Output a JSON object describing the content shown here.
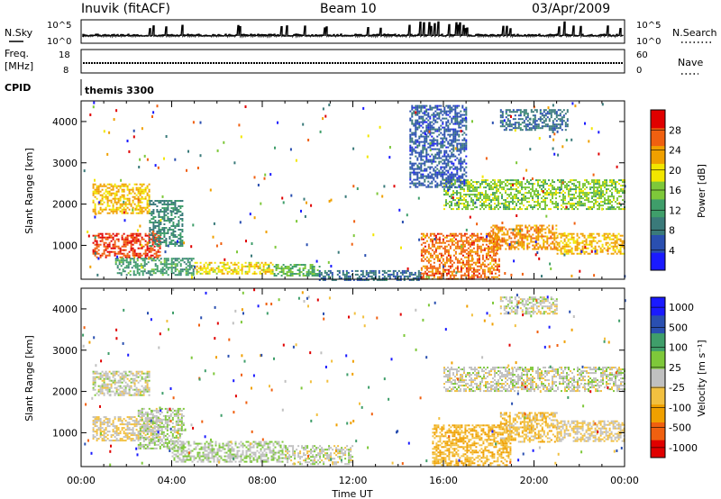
{
  "header": {
    "title": "Inuvik (fitACF)",
    "beam": "Beam 10",
    "date": "03/Apr/2009"
  },
  "strips": {
    "nsky_label": "N.Sky",
    "nsearch_label": "N.Search",
    "nsky_ticks": [
      "10^5",
      "10^0"
    ],
    "nsearch_ticks": [
      "10^5",
      "10^0"
    ],
    "freq_label": "Freq.",
    "freq_unit": "[MHz]",
    "freq_ticks": [
      "18",
      "8"
    ],
    "nave_label": "Nave",
    "nave_ticks": [
      "60",
      "0"
    ],
    "cpid_label": "CPID",
    "cpid_value": "themis 3300"
  },
  "colors": {
    "power_scale": [
      "#1a1aff",
      "#2a4fb0",
      "#3a7a7a",
      "#3f9e6a",
      "#7ec83a",
      "#f2e600",
      "#f0a000",
      "#f06010",
      "#e00000"
    ],
    "velocity_scale": [
      "#e00000",
      "#f06010",
      "#f0a000",
      "#f2c040",
      "#c0c0c0",
      "#7ec83a",
      "#3f9e6a",
      "#2a4fb0",
      "#1a1aff"
    ]
  },
  "chart_data": [
    {
      "type": "heatmap",
      "name": "power",
      "ylabel": "Slant Range [km]",
      "y_ticks": [
        "4000",
        "3000",
        "2000",
        "1000"
      ],
      "ylim": [
        180,
        4500
      ],
      "xlim": [
        0,
        24
      ],
      "colorbar_label": "Power [dB]",
      "colorbar_ticks": [
        "28",
        "24",
        "20",
        "16",
        "12",
        "8",
        "4"
      ],
      "colorbar_range": [
        0,
        32
      ],
      "regions": [
        {
          "t": [
            0.5,
            3.5
          ],
          "r": [
            700,
            1300
          ],
          "level": 28
        },
        {
          "t": [
            0.5,
            3.0
          ],
          "r": [
            1800,
            2500
          ],
          "level": 22
        },
        {
          "t": [
            3.0,
            4.5
          ],
          "r": [
            1000,
            2100
          ],
          "level": 10
        },
        {
          "t": [
            1.5,
            5.0
          ],
          "r": [
            300,
            700
          ],
          "level": 12
        },
        {
          "t": [
            5.0,
            8.5
          ],
          "r": [
            300,
            600
          ],
          "level": 20
        },
        {
          "t": [
            8.5,
            10.5
          ],
          "r": [
            250,
            550
          ],
          "level": 14
        },
        {
          "t": [
            10.5,
            15.0
          ],
          "r": [
            180,
            400
          ],
          "level": 8
        },
        {
          "t": [
            15.0,
            18.5
          ],
          "r": [
            200,
            1300
          ],
          "level": 26
        },
        {
          "t": [
            18.0,
            21.0
          ],
          "r": [
            900,
            1500
          ],
          "level": 24
        },
        {
          "t": [
            21.0,
            24.0
          ],
          "r": [
            800,
            1300
          ],
          "level": 22
        },
        {
          "t": [
            16.0,
            24.0
          ],
          "r": [
            1900,
            2600
          ],
          "level": 16
        },
        {
          "t": [
            14.5,
            17.0
          ],
          "r": [
            2400,
            4400
          ],
          "level": 6
        },
        {
          "t": [
            18.5,
            21.5
          ],
          "r": [
            3800,
            4300
          ],
          "level": 8
        }
      ]
    },
    {
      "type": "heatmap",
      "name": "velocity",
      "ylabel": "Slant Range [km]",
      "y_ticks": [
        "4000",
        "3000",
        "2000",
        "1000"
      ],
      "ylim": [
        180,
        4500
      ],
      "xlim": [
        0,
        24
      ],
      "xlabel": "Time UT",
      "x_ticks": [
        "00:00",
        "04:00",
        "08:00",
        "12:00",
        "16:00",
        "20:00",
        "00:00"
      ],
      "colorbar_label": "Velocity [m s⁻¹]",
      "colorbar_ticks": [
        "1000",
        "500",
        "100",
        "25",
        "-25",
        "-100",
        "-500",
        "-1000"
      ],
      "colorbar_range": [
        -1250,
        1250
      ],
      "regions": [
        {
          "t": [
            0.5,
            3.5
          ],
          "r": [
            800,
            1400
          ],
          "level": -120
        },
        {
          "t": [
            0.5,
            3.0
          ],
          "r": [
            1900,
            2500
          ],
          "level": 0
        },
        {
          "t": [
            2.5,
            4.5
          ],
          "r": [
            600,
            1600
          ],
          "level": 80
        },
        {
          "t": [
            4.0,
            9.0
          ],
          "r": [
            300,
            800
          ],
          "level": 100
        },
        {
          "t": [
            9.0,
            12.0
          ],
          "r": [
            250,
            700
          ],
          "level": 20
        },
        {
          "t": [
            15.5,
            19.0
          ],
          "r": [
            200,
            1200
          ],
          "level": -400
        },
        {
          "t": [
            18.5,
            21.0
          ],
          "r": [
            800,
            1500
          ],
          "level": -300
        },
        {
          "t": [
            21.0,
            24.0
          ],
          "r": [
            800,
            1300
          ],
          "level": -150
        },
        {
          "t": [
            16.0,
            24.0
          ],
          "r": [
            2000,
            2600
          ],
          "level": 0
        },
        {
          "t": [
            18.5,
            21.0
          ],
          "r": [
            3900,
            4300
          ],
          "level": 0
        }
      ]
    }
  ]
}
